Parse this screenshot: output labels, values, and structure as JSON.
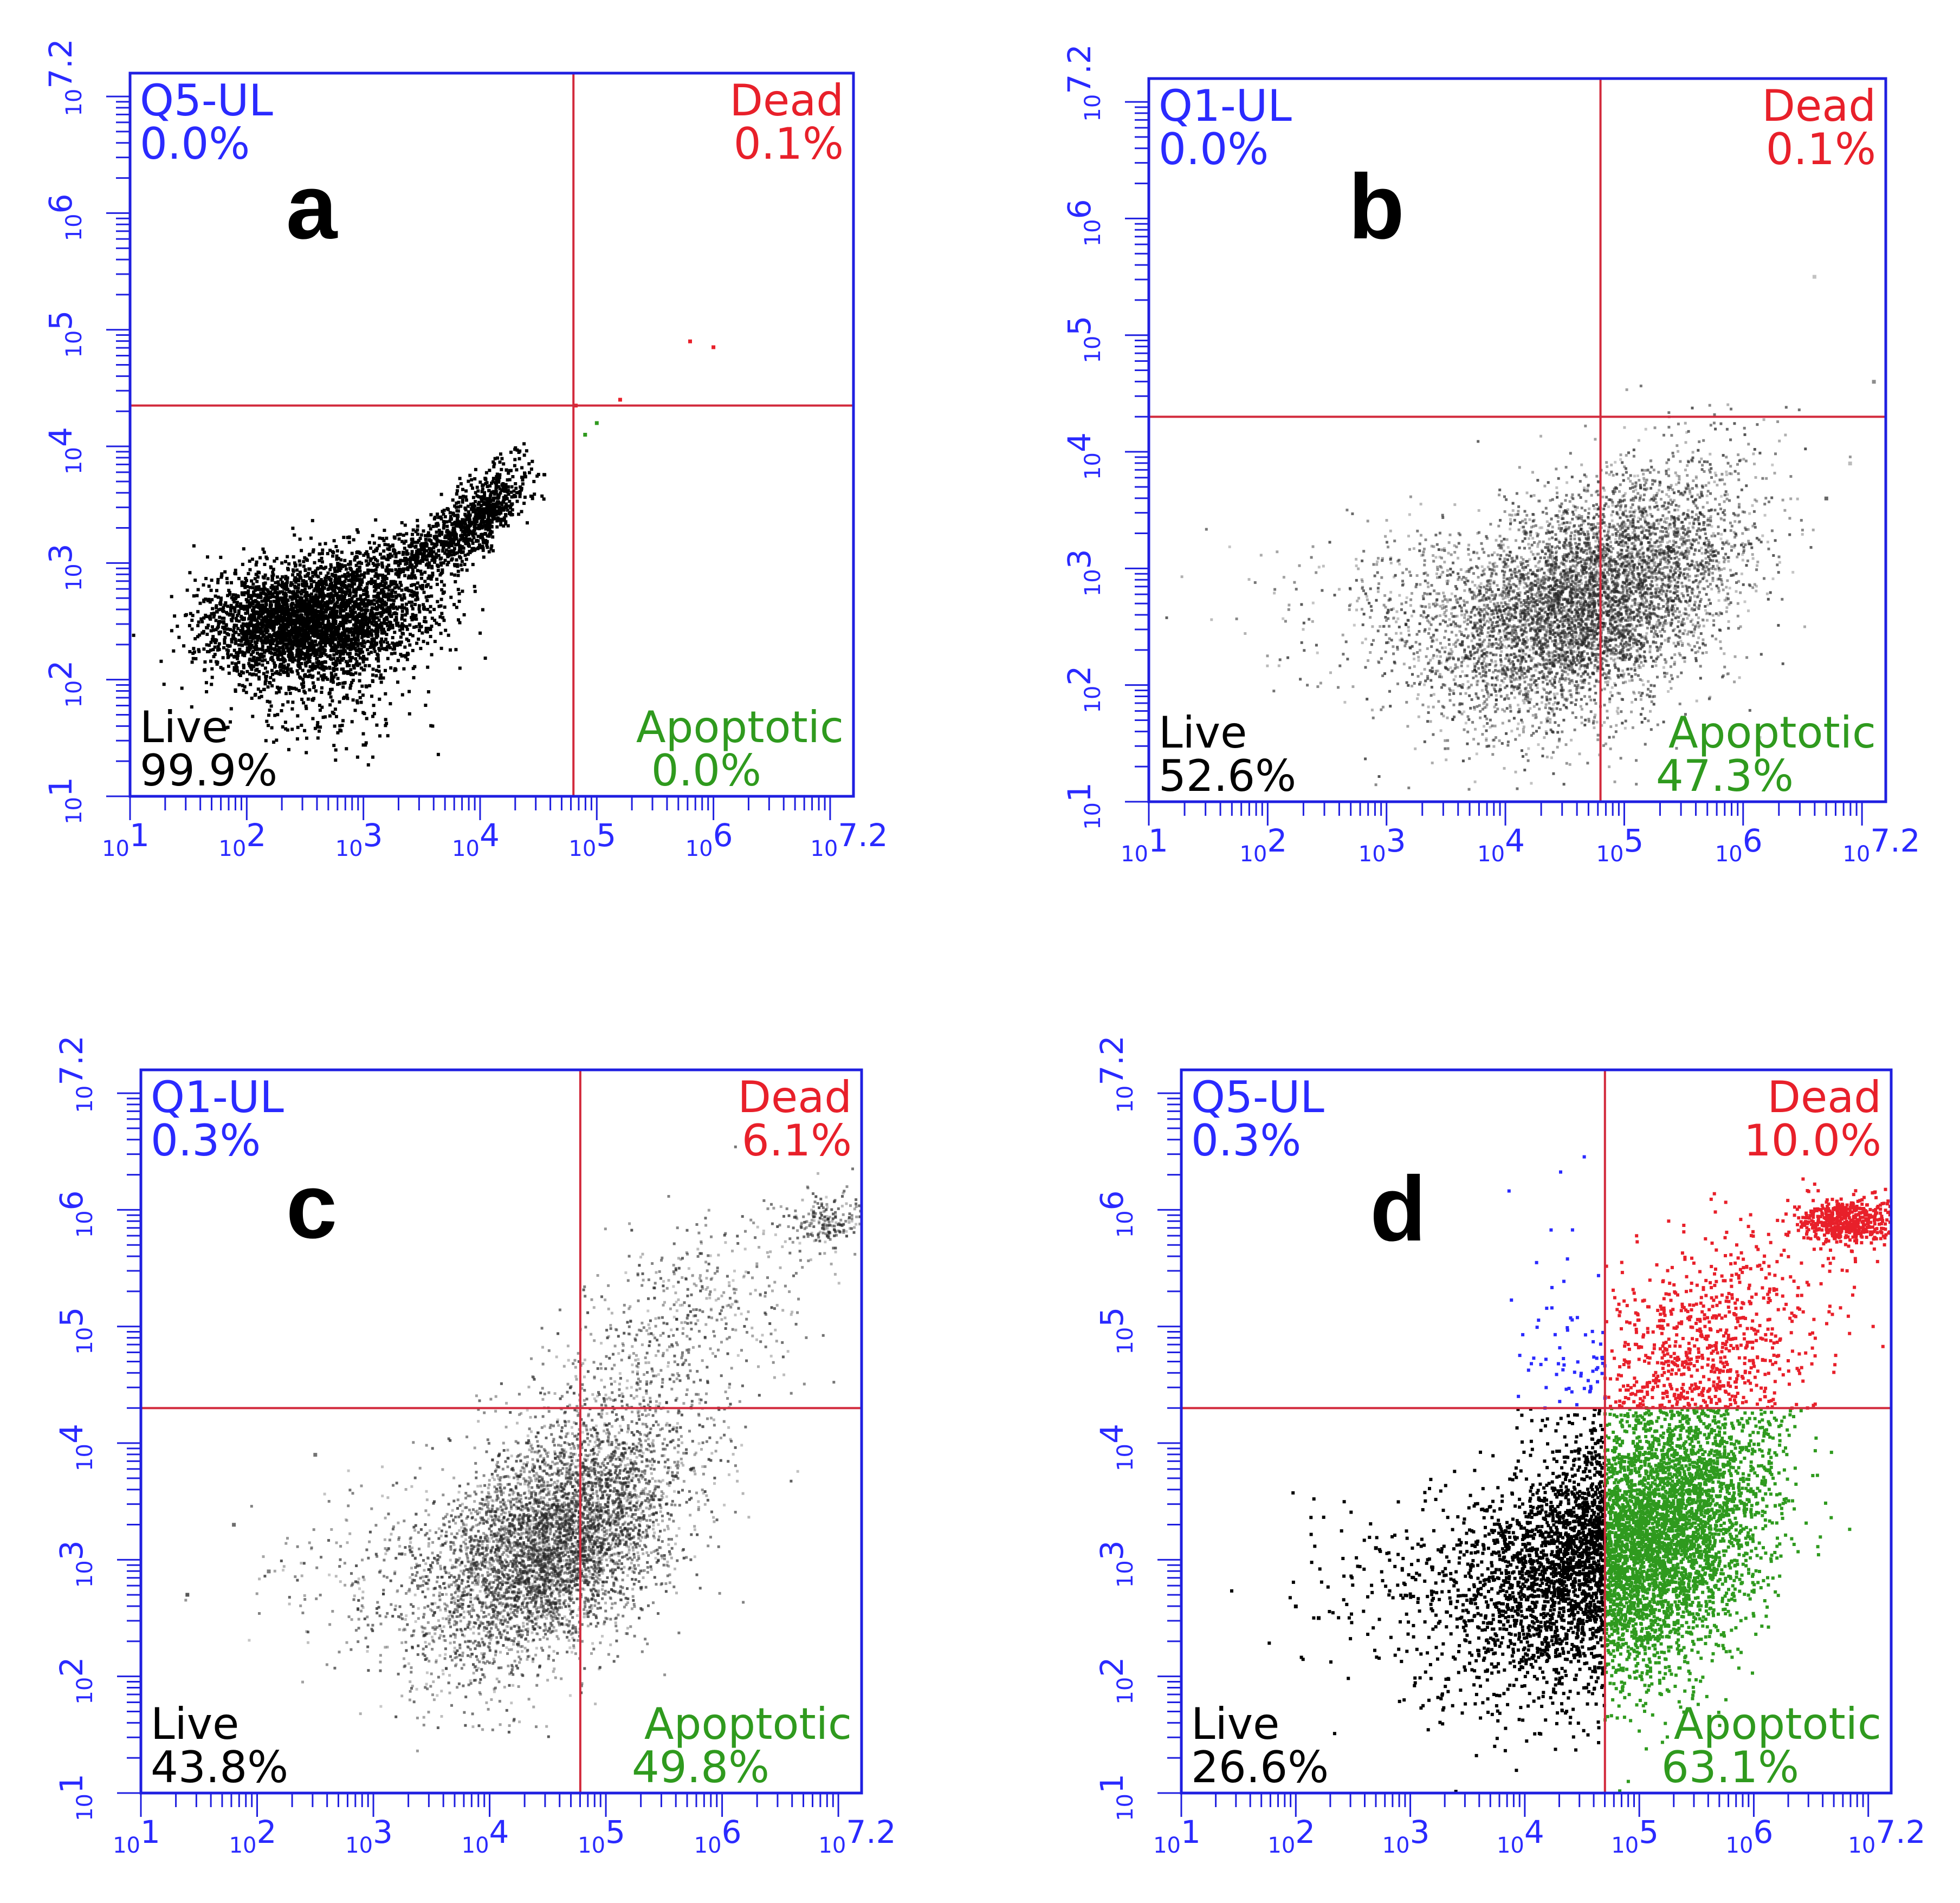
{
  "colors": {
    "axis": "#1f1fe0",
    "gate": "#d22a3c",
    "upper_left": "#2a2aff",
    "dead": "#e8202a",
    "live": "#000000",
    "apoptotic": "#2f9a1e",
    "density_gray": "#555555"
  },
  "chart_data": [
    {
      "type": "scatter",
      "panel_label": "a",
      "xlim": [
        1,
        7.2
      ],
      "ylim": [
        1,
        7.2
      ],
      "log_scale": true,
      "x_tick_values": [
        1,
        2,
        3,
        4,
        5,
        6,
        7.2
      ],
      "y_tick_values": [
        1,
        2,
        3,
        4,
        5,
        6,
        7.2
      ],
      "x_ticks": [
        {
          "base": "10",
          "exp": "1"
        },
        {
          "base": "10",
          "exp": "2"
        },
        {
          "base": "10",
          "exp": "3"
        },
        {
          "base": "10",
          "exp": "4"
        },
        {
          "base": "10",
          "exp": "5"
        },
        {
          "base": "10",
          "exp": "6"
        },
        {
          "base": "10",
          "exp": "7.2"
        }
      ],
      "y_ticks": [
        {
          "base": "10",
          "exp": "1"
        },
        {
          "base": "10",
          "exp": "2"
        },
        {
          "base": "10",
          "exp": "3"
        },
        {
          "base": "10",
          "exp": "4"
        },
        {
          "base": "10",
          "exp": "5"
        },
        {
          "base": "10",
          "exp": "6"
        },
        {
          "base": "10",
          "exp": "7.2"
        }
      ],
      "gate": {
        "x": 4.8,
        "y": 4.35
      },
      "quadrants": {
        "upper_left": {
          "name": "Q5-UL",
          "value": "0.0%"
        },
        "upper_right": {
          "name": "Dead",
          "value": "0.1%"
        },
        "lower_left": {
          "name": "Live",
          "value": "99.9%"
        },
        "lower_right": {
          "name": "Apoptotic",
          "value": "0.0%"
        }
      },
      "color_mode": "gated",
      "clusters": [
        {
          "cx": 2.7,
          "cy": 2.5,
          "sx": 0.45,
          "sy": 0.28,
          "rho": 0.25,
          "n": 2600
        },
        {
          "cx": 2.25,
          "cy": 2.55,
          "sx": 0.35,
          "sy": 0.22,
          "rho": 0.1,
          "n": 900
        },
        {
          "cx": 4.0,
          "cy": 3.4,
          "sx": 0.22,
          "sy": 0.22,
          "rho": 0.7,
          "n": 700
        },
        {
          "cx": 2.8,
          "cy": 1.7,
          "sx": 0.35,
          "sy": 0.25,
          "rho": 0.0,
          "n": 110
        },
        {
          "cx": 3.5,
          "cy": 3.1,
          "sx": 0.25,
          "sy": 0.15,
          "rho": 0.6,
          "n": 300
        }
      ],
      "extra_points": [
        {
          "x": 5.8,
          "y": 4.9
        },
        {
          "x": 6.0,
          "y": 4.85
        },
        {
          "x": 5.2,
          "y": 4.4
        },
        {
          "x": 5.0,
          "y": 4.2
        },
        {
          "x": 4.9,
          "y": 4.1
        },
        {
          "x": 4.82,
          "y": 4.35
        }
      ]
    },
    {
      "type": "scatter",
      "panel_label": "b",
      "xlim": [
        1,
        7.2
      ],
      "ylim": [
        1,
        7.2
      ],
      "log_scale": true,
      "x_tick_values": [
        1,
        2,
        3,
        4,
        5,
        6,
        7.2
      ],
      "y_tick_values": [
        1,
        2,
        3,
        4,
        5,
        6,
        7.2
      ],
      "x_ticks": [
        {
          "base": "10",
          "exp": "1"
        },
        {
          "base": "10",
          "exp": "2"
        },
        {
          "base": "10",
          "exp": "3"
        },
        {
          "base": "10",
          "exp": "4"
        },
        {
          "base": "10",
          "exp": "5"
        },
        {
          "base": "10",
          "exp": "6"
        },
        {
          "base": "10",
          "exp": "7.2"
        }
      ],
      "y_ticks": [
        {
          "base": "10",
          "exp": "1"
        },
        {
          "base": "10",
          "exp": "2"
        },
        {
          "base": "10",
          "exp": "3"
        },
        {
          "base": "10",
          "exp": "4"
        },
        {
          "base": "10",
          "exp": "5"
        },
        {
          "base": "10",
          "exp": "6"
        },
        {
          "base": "10",
          "exp": "7.2"
        }
      ],
      "gate": {
        "x": 4.8,
        "y": 4.3
      },
      "quadrants": {
        "upper_left": {
          "name": "Q1-UL",
          "value": "0.0%"
        },
        "upper_right": {
          "name": "Dead",
          "value": "0.1%"
        },
        "lower_left": {
          "name": "Live",
          "value": "52.6%"
        },
        "lower_right": {
          "name": "Apoptotic",
          "value": "47.3%"
        }
      },
      "color_mode": "gray",
      "clusters": [
        {
          "cx": 4.65,
          "cy": 2.65,
          "sx": 0.6,
          "sy": 0.5,
          "rho": 0.35,
          "n": 5200
        },
        {
          "cx": 3.4,
          "cy": 2.7,
          "sx": 0.7,
          "sy": 0.35,
          "rho": 0.1,
          "n": 500
        },
        {
          "cx": 5.3,
          "cy": 3.3,
          "sx": 0.45,
          "sy": 0.45,
          "rho": 0.3,
          "n": 700
        }
      ],
      "extra_points": [
        {
          "x": 6.6,
          "y": 5.5
        },
        {
          "x": 7.1,
          "y": 4.6
        },
        {
          "x": 6.9,
          "y": 3.9
        },
        {
          "x": 6.7,
          "y": 3.6
        }
      ]
    },
    {
      "type": "scatter",
      "panel_label": "c",
      "xlim": [
        1,
        7.2
      ],
      "ylim": [
        1,
        7.2
      ],
      "log_scale": true,
      "x_tick_values": [
        1,
        2,
        3,
        4,
        5,
        6,
        7.2
      ],
      "y_tick_values": [
        1,
        2,
        3,
        4,
        5,
        6,
        7.2
      ],
      "x_ticks": [
        {
          "base": "10",
          "exp": "1"
        },
        {
          "base": "10",
          "exp": "2"
        },
        {
          "base": "10",
          "exp": "3"
        },
        {
          "base": "10",
          "exp": "4"
        },
        {
          "base": "10",
          "exp": "5"
        },
        {
          "base": "10",
          "exp": "6"
        },
        {
          "base": "10",
          "exp": "7.2"
        }
      ],
      "y_ticks": [
        {
          "base": "10",
          "exp": "1"
        },
        {
          "base": "10",
          "exp": "2"
        },
        {
          "base": "10",
          "exp": "3"
        },
        {
          "base": "10",
          "exp": "4"
        },
        {
          "base": "10",
          "exp": "5"
        },
        {
          "base": "10",
          "exp": "6"
        },
        {
          "base": "10",
          "exp": "7.2"
        }
      ],
      "gate": {
        "x": 4.78,
        "y": 4.3
      },
      "quadrants": {
        "upper_left": {
          "name": "Q1-UL",
          "value": "0.3%"
        },
        "upper_right": {
          "name": "Dead",
          "value": "6.1%"
        },
        "lower_left": {
          "name": "Live",
          "value": "43.8%"
        },
        "lower_right": {
          "name": "Apoptotic",
          "value": "49.8%"
        }
      },
      "color_mode": "gray",
      "clusters": [
        {
          "cx": 4.55,
          "cy": 3.15,
          "sx": 0.55,
          "sy": 0.55,
          "rho": 0.5,
          "n": 5200
        },
        {
          "cx": 5.6,
          "cy": 4.9,
          "sx": 0.6,
          "sy": 0.55,
          "rho": 0.6,
          "n": 600
        },
        {
          "cx": 6.9,
          "cy": 5.9,
          "sx": 0.18,
          "sy": 0.1,
          "rho": 0.0,
          "n": 180
        },
        {
          "cx": 3.2,
          "cy": 2.9,
          "sx": 0.6,
          "sy": 0.4,
          "rho": 0.2,
          "n": 250
        }
      ],
      "extra_points": [
        {
          "x": 1.4,
          "y": 2.7
        },
        {
          "x": 1.8,
          "y": 3.3
        },
        {
          "x": 2.1,
          "y": 2.9
        },
        {
          "x": 2.5,
          "y": 3.9
        }
      ]
    },
    {
      "type": "scatter",
      "panel_label": "d",
      "xlim": [
        1,
        7.2
      ],
      "ylim": [
        1,
        7.2
      ],
      "log_scale": true,
      "x_tick_values": [
        1,
        2,
        3,
        4,
        5,
        6,
        7.2
      ],
      "y_tick_values": [
        1,
        2,
        3,
        4,
        5,
        6,
        7.2
      ],
      "x_ticks": [
        {
          "base": "10",
          "exp": "1"
        },
        {
          "base": "10",
          "exp": "2"
        },
        {
          "base": "10",
          "exp": "3"
        },
        {
          "base": "10",
          "exp": "4"
        },
        {
          "base": "10",
          "exp": "5"
        },
        {
          "base": "10",
          "exp": "6"
        },
        {
          "base": "10",
          "exp": "7.2"
        }
      ],
      "y_ticks": [
        {
          "base": "10",
          "exp": "1"
        },
        {
          "base": "10",
          "exp": "2"
        },
        {
          "base": "10",
          "exp": "3"
        },
        {
          "base": "10",
          "exp": "4"
        },
        {
          "base": "10",
          "exp": "5"
        },
        {
          "base": "10",
          "exp": "6"
        },
        {
          "base": "10",
          "exp": "7.2"
        }
      ],
      "gate": {
        "x": 4.7,
        "y": 4.3
      },
      "quadrants": {
        "upper_left": {
          "name": "Q5-UL",
          "value": "0.3%"
        },
        "upper_right": {
          "name": "Dead",
          "value": "10.0%"
        },
        "lower_left": {
          "name": "Live",
          "value": "26.6%"
        },
        "lower_right": {
          "name": "Apoptotic",
          "value": "63.1%"
        }
      },
      "color_mode": "gated",
      "clusters": [
        {
          "cx": 4.4,
          "cy": 3.0,
          "sx": 0.55,
          "sy": 0.55,
          "rho": 0.5,
          "n": 2200
        },
        {
          "cx": 5.2,
          "cy": 3.2,
          "sx": 0.5,
          "sy": 0.65,
          "rho": 0.45,
          "n": 4000
        },
        {
          "cx": 5.5,
          "cy": 4.9,
          "sx": 0.6,
          "sy": 0.45,
          "rho": 0.5,
          "n": 700
        },
        {
          "cx": 6.8,
          "cy": 5.9,
          "sx": 0.2,
          "sy": 0.1,
          "rho": 0.0,
          "n": 500
        },
        {
          "cx": 3.2,
          "cy": 2.9,
          "sx": 0.6,
          "sy": 0.35,
          "rho": 0.3,
          "n": 250
        },
        {
          "cx": 4.3,
          "cy": 5.0,
          "sx": 0.25,
          "sy": 0.6,
          "rho": 0.2,
          "n": 25
        }
      ],
      "extra_points": [
        {
          "x": 2.0,
          "y": 2.6
        },
        {
          "x": 2.2,
          "y": 2.5
        },
        {
          "x": 2.7,
          "y": 3.1
        }
      ]
    }
  ]
}
